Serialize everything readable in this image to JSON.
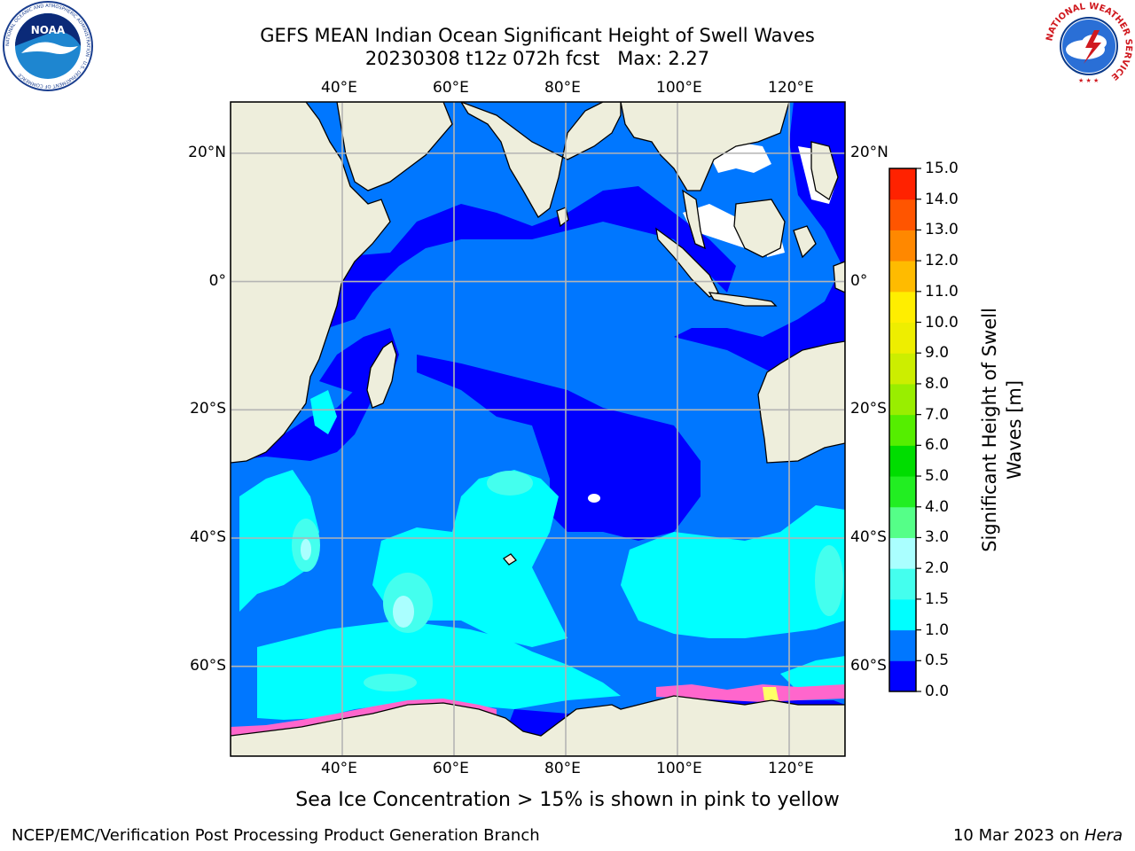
{
  "header": {
    "title_line1": "GEFS MEAN Indian Ocean Significant Height of Swell Waves",
    "title_line2": "20230308 t12z 072h fcst   Max: 2.27"
  },
  "logos": {
    "left": {
      "name": "noaa-logo",
      "text": "NOAA",
      "ring_text": "NATIONAL OCEANIC AND ATMOSPHERIC ADMINISTRATION · U.S. DEPARTMENT OF COMMERCE"
    },
    "right": {
      "name": "nws-logo",
      "ring_text": "NATIONAL WEATHER SERVICE"
    }
  },
  "map": {
    "projection": "cylindrical",
    "lon_range": [
      20,
      130
    ],
    "lat_range": [
      -74,
      28
    ],
    "grid": true,
    "lon_ticks": [
      "40°E",
      "60°E",
      "80°E",
      "100°E",
      "120°E"
    ],
    "lon_tick_values": [
      40,
      60,
      80,
      100,
      120
    ],
    "lat_ticks_left": [
      "20°N",
      "0°",
      "20°S",
      "40°S",
      "60°S"
    ],
    "lat_ticks_right": [
      "20°N",
      "0°",
      "20°S",
      "40°S",
      "60°S"
    ],
    "lat_tick_values": [
      20,
      0,
      -20,
      -40,
      -60
    ],
    "colors": {
      "land": "#eeeedc",
      "ocean_base": "#0077ff",
      "swell_0_05": "#0000ff",
      "swell_05_10": "#0077ff",
      "swell_10_15": "#00ffff",
      "swell_15_20": "#44ffee",
      "swell_20_30": "#aaffff",
      "sea_ice_pink": "#ff66cc",
      "sea_ice_yellow": "#ffff66",
      "missing": "#ffffff",
      "grid": "#b4b4b4",
      "coast": "#000000"
    }
  },
  "colorbar": {
    "label_line1": "Significant Height of Swell",
    "label_line2": "Waves [m]",
    "tick_labels": [
      "0.0",
      "0.5",
      "1.0",
      "1.5",
      "2.0",
      "3.0",
      "4.0",
      "5.0",
      "6.0",
      "7.0",
      "8.0",
      "9.0",
      "10.0",
      "11.0",
      "12.0",
      "13.0",
      "14.0",
      "15.0"
    ],
    "bin_colors": [
      "#0000ff",
      "#0077ff",
      "#00ffff",
      "#44ffee",
      "#aaffff",
      "#55ff88",
      "#22ee22",
      "#00dd00",
      "#55ee00",
      "#99ee00",
      "#ccee00",
      "#eeee00",
      "#ffee00",
      "#ffbb00",
      "#ff8800",
      "#ff5500",
      "#ff2200"
    ]
  },
  "footer": {
    "caption": "Sea Ice Concentration > 15% is shown in pink to yellow",
    "credit_left": "NCEP/EMC/Verification Post Processing Product Generation Branch",
    "credit_date": "10 Mar 2023 on ",
    "credit_machine": "Hera"
  }
}
